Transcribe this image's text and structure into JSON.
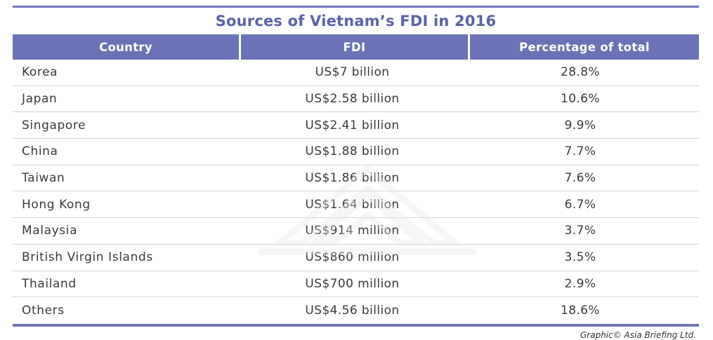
{
  "title": "Sources of Vietnam’s FDI in 2016",
  "headers": [
    "Country",
    "FDI",
    "Percentage of total"
  ],
  "rows": [
    {
      "country": "Korea",
      "fdi": "US$7 billion",
      "pct": "28.8%"
    },
    {
      "country": "Japan",
      "fdi": "US$2.58 billion",
      "pct": "10.6%"
    },
    {
      "country": "Singapore",
      "fdi": "US$2.41 billion",
      "pct": "9.9%"
    },
    {
      "country": "China",
      "fdi": "US$1.88 billion",
      "pct": "7.7%"
    },
    {
      "country": "Taiwan",
      "fdi": "US$1.86 billion",
      "pct": "7.6%"
    },
    {
      "country": "Hong Kong",
      "fdi": "US$1.64 billion",
      "pct": "6.7%"
    },
    {
      "country": "Malaysia",
      "fdi": "US$914 million",
      "pct": "3.7%"
    },
    {
      "country": "British Virgin Islands",
      "fdi": "US$860 million",
      "pct": "3.5%"
    },
    {
      "country": "Thailand",
      "fdi": "US$700 million",
      "pct": "2.9%"
    },
    {
      "country": "Others",
      "fdi": "US$4.56 billion",
      "pct": "18.6%"
    }
  ],
  "credit": "Graphic© Asia Briefing Ltd.",
  "colors": {
    "header_bg": "#6b72b6",
    "title": "#5a62a8",
    "rule": "#6f77b5",
    "row_divider": "#cfd1de"
  }
}
